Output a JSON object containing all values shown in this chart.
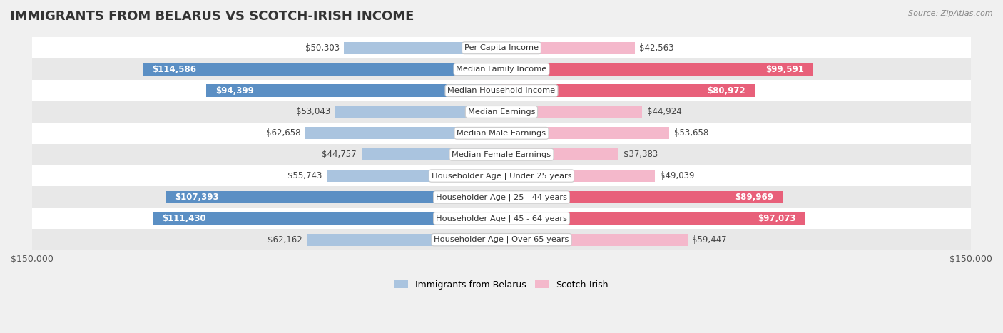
{
  "title": "IMMIGRANTS FROM BELARUS VS SCOTCH-IRISH INCOME",
  "source": "Source: ZipAtlas.com",
  "categories": [
    "Per Capita Income",
    "Median Family Income",
    "Median Household Income",
    "Median Earnings",
    "Median Male Earnings",
    "Median Female Earnings",
    "Householder Age | Under 25 years",
    "Householder Age | 25 - 44 years",
    "Householder Age | 45 - 64 years",
    "Householder Age | Over 65 years"
  ],
  "belarus_values": [
    50303,
    114586,
    94399,
    53043,
    62658,
    44757,
    55743,
    107393,
    111430,
    62162
  ],
  "scotch_irish_values": [
    42563,
    99591,
    80972,
    44924,
    53658,
    37383,
    49039,
    89969,
    97073,
    59447
  ],
  "belarus_labels": [
    "$50,303",
    "$114,586",
    "$94,399",
    "$53,043",
    "$62,658",
    "$44,757",
    "$55,743",
    "$107,393",
    "$111,430",
    "$62,162"
  ],
  "scotch_irish_labels": [
    "$42,563",
    "$99,591",
    "$80,972",
    "$44,924",
    "$53,658",
    "$37,383",
    "$49,039",
    "$89,969",
    "$97,073",
    "$59,447"
  ],
  "belarus_color_light": "#aac4df",
  "belarus_color_dark": "#5b8fc4",
  "scotch_irish_color_light": "#f4b8cb",
  "scotch_irish_color_dark": "#e8607a",
  "max_value": 150000,
  "bar_height": 0.58,
  "background_color": "#f0f0f0",
  "row_bg_light": "#ffffff",
  "row_bg_dark": "#e8e8e8",
  "title_fontsize": 13,
  "label_fontsize": 8.5,
  "category_fontsize": 8.2,
  "legend_fontsize": 9,
  "threshold_dark": 70000
}
